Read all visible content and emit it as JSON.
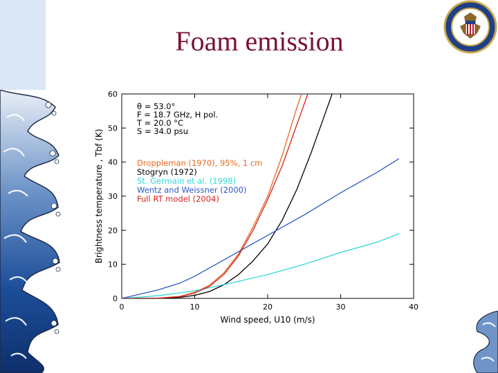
{
  "slide": {
    "title": "Foam emission"
  },
  "colors": {
    "title": "#7a1038",
    "droppleman": "#e8681e",
    "stogryn": "#000000",
    "st_germain": "#2fd7d7",
    "wentz": "#2b58c4",
    "full_rt": "#d2241c"
  },
  "decor": {
    "seal_icon": "circular-agency-seal-icon",
    "wave_icon": "great-wave-decoration"
  },
  "chart_data": {
    "type": "line",
    "title": "",
    "xlabel": "Wind speed, U10 (m/s)",
    "ylabel": "Brightness temperature , Tbf (K)",
    "xlim": [
      0,
      40
    ],
    "ylim": [
      0,
      60
    ],
    "xticks": [
      "0",
      "10",
      "20",
      "30",
      "40"
    ],
    "yticks": [
      "0",
      "10",
      "20",
      "30",
      "40",
      "50",
      "60"
    ],
    "params": [
      "θ = 53.0°",
      "F = 18.7 GHz, H pol.",
      "T = 20.0 °C",
      "S = 34.0 psu"
    ],
    "series": [
      {
        "name": "Droppleman (1970), 95%, 1 cm",
        "color": "#e8681e",
        "x": [
          0,
          5,
          8,
          10,
          12,
          14,
          16,
          18,
          20,
          22,
          24,
          24.8
        ],
        "y": [
          0,
          0.1,
          0.6,
          1.8,
          3.8,
          7.5,
          13,
          21,
          30,
          42,
          56,
          61
        ]
      },
      {
        "name": "Stogryn (1972)",
        "color": "#000000",
        "x": [
          0,
          5,
          8,
          10,
          12,
          14,
          16,
          18,
          20,
          22,
          24,
          26,
          28,
          29
        ],
        "y": [
          0,
          0.05,
          0.3,
          0.9,
          2,
          4,
          7,
          11,
          16,
          23,
          32,
          43,
          55,
          61
        ]
      },
      {
        "name": "St. Germain et al. (1998)",
        "color": "#2fd7d7",
        "x": [
          0,
          5,
          10,
          15,
          20,
          25,
          30,
          35,
          38
        ],
        "y": [
          0,
          0.8,
          2.2,
          4.5,
          7,
          10,
          13.5,
          16.5,
          19
        ]
      },
      {
        "name": "Wentz and Weissner (2000)",
        "color": "#2b58c4",
        "x": [
          0,
          5,
          8,
          10,
          15,
          20,
          25,
          30,
          35,
          38
        ],
        "y": [
          0,
          2.5,
          4.5,
          6.5,
          12.5,
          18.5,
          24.5,
          31,
          37,
          41
        ]
      },
      {
        "name": "Full RT model (2004)",
        "color": "#d2241c",
        "x": [
          0,
          5,
          8,
          10,
          12,
          14,
          16,
          18,
          20,
          22,
          24,
          25.5
        ],
        "y": [
          0,
          0.05,
          0.5,
          1.6,
          3.5,
          7,
          12.5,
          20,
          29,
          39,
          51,
          60
        ]
      }
    ]
  }
}
